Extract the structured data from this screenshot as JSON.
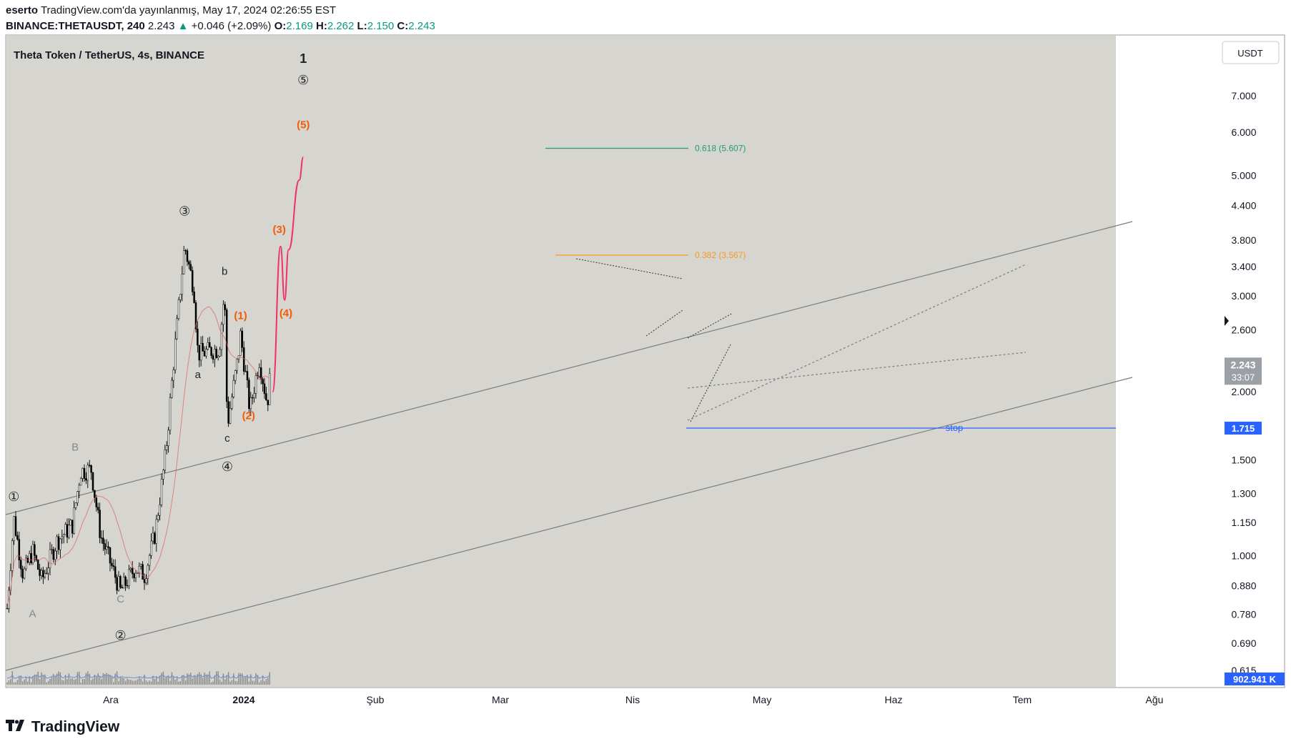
{
  "header": {
    "author": "eserto",
    "published": "TradingView.com'da yayınlanmış, May 17, 2024 02:26:55 EST",
    "symbol": "BINANCE:THETAUSDT, 240",
    "last": "2.243",
    "change": "+0.046 (+2.09%)",
    "o_label": "O:",
    "o_value": "2.169",
    "h_label": "H:",
    "h_value": "2.262",
    "l_label": "L:",
    "l_value": "2.150",
    "c_label": "C:",
    "c_value": "2.243"
  },
  "footer": {
    "brand": "TradingView"
  },
  "colors": {
    "plot_bg": "#d6d5d0",
    "candle": "#000000",
    "channel": "#7d7d7d",
    "fib_green": "#1e9e78",
    "fib_orange": "#f59a23",
    "projection": "#f0316a",
    "wave_orange": "#f25c05",
    "stop": "#2962ff",
    "price_box": "#9aa0a6"
  },
  "chart_data": {
    "type": "candlestick",
    "title": "Theta Token / TetherUS, 4s, BINANCE",
    "currency_button": "USDT",
    "y_scale": "log",
    "ylim": [
      0.615,
      8.0
    ],
    "y_ticks": [
      "7.000",
      "6.000",
      "5.000",
      "4.400",
      "3.800",
      "3.400",
      "3.000",
      "2.600",
      "2.200",
      "2.000",
      "1.500",
      "1.300",
      "1.150",
      "1.000",
      "0.880",
      "0.780",
      "0.690",
      "0.615"
    ],
    "x_ticks": [
      "Ara",
      "2024",
      "Şub",
      "Mar",
      "Nis",
      "May",
      "Haz",
      "Tem",
      "Ağu"
    ],
    "last_price": {
      "value": "2.243",
      "countdown": "33:07"
    },
    "stop_level": {
      "value": "1.715",
      "label": "stop"
    },
    "volume_label": "902.941 K",
    "fib_levels": [
      {
        "label": "0.618 (5.607)",
        "price": 5.607
      },
      {
        "label": "0.382 (3.567)",
        "price": 3.567
      }
    ],
    "price_path": [
      {
        "date": "2023-11-01",
        "close": 0.8
      },
      {
        "date": "2023-11-06",
        "close": 1.17
      },
      {
        "date": "2023-11-13",
        "close": 0.92
      },
      {
        "date": "2023-11-20",
        "close": 1.02
      },
      {
        "date": "2023-11-27",
        "close": 0.9
      },
      {
        "date": "2023-12-08",
        "close": 1.06
      },
      {
        "date": "2023-12-20",
        "close": 1.14
      },
      {
        "date": "2023-12-26",
        "close": 1.43
      },
      {
        "date": "2024-01-03",
        "close": 1.44
      },
      {
        "date": "2024-01-10",
        "close": 1.09
      },
      {
        "date": "2024-01-25",
        "close": 0.86
      },
      {
        "date": "2024-02-05",
        "close": 0.95
      },
      {
        "date": "2024-02-12",
        "close": 0.92
      },
      {
        "date": "2024-02-20",
        "close": 1.1
      },
      {
        "date": "2024-02-28",
        "close": 1.55
      },
      {
        "date": "2024-03-05",
        "close": 2.3
      },
      {
        "date": "2024-03-13",
        "close": 3.72
      },
      {
        "date": "2024-03-20",
        "close": 3.1
      },
      {
        "date": "2024-03-23",
        "close": 2.35
      },
      {
        "date": "2024-04-08",
        "close": 2.4
      },
      {
        "date": "2024-04-12",
        "close": 3.08
      },
      {
        "date": "2024-04-14",
        "close": 1.73
      },
      {
        "date": "2024-04-22",
        "close": 2.3
      },
      {
        "date": "2024-04-24",
        "close": 2.55
      },
      {
        "date": "2024-05-01",
        "close": 1.85
      },
      {
        "date": "2024-05-08",
        "close": 2.3
      },
      {
        "date": "2024-05-14",
        "close": 1.9
      },
      {
        "date": "2024-05-17",
        "close": 2.243
      }
    ],
    "projection_path": [
      {
        "date": "2024-05-18",
        "close": 2.0
      },
      {
        "date": "2024-05-24",
        "close": 3.7
      },
      {
        "date": "2024-05-27",
        "close": 2.95
      },
      {
        "date": "2024-05-30",
        "close": 3.65
      },
      {
        "date": "2024-06-07",
        "close": 4.9
      },
      {
        "date": "2024-06-10",
        "close": 5.4
      }
    ],
    "wave_labels": [
      {
        "text": "①",
        "date": "2023-11-06",
        "price": 1.26
      },
      {
        "text": "A",
        "date": "2023-11-20",
        "price": 0.77
      },
      {
        "text": "B",
        "date": "2023-12-22",
        "price": 1.56
      },
      {
        "text": "C",
        "date": "2024-01-25",
        "price": 0.82
      },
      {
        "text": "②",
        "date": "2024-01-25",
        "price": 0.7
      },
      {
        "text": "③",
        "date": "2024-03-13",
        "price": 4.22
      },
      {
        "text": "a",
        "date": "2024-03-23",
        "price": 2.12
      },
      {
        "text": "b",
        "date": "2024-04-12",
        "price": 3.28
      },
      {
        "text": "c",
        "date": "2024-04-14",
        "price": 1.62
      },
      {
        "text": "④",
        "date": "2024-04-14",
        "price": 1.43
      },
      {
        "text": "(1)",
        "date": "2024-04-24",
        "price": 2.72
      },
      {
        "text": "(2)",
        "date": "2024-04-30",
        "price": 1.78
      },
      {
        "text": "(3)",
        "date": "2024-05-23",
        "price": 3.92
      },
      {
        "text": "(4)",
        "date": "2024-05-28",
        "price": 2.75
      },
      {
        "text": "(5)",
        "date": "2024-06-10",
        "price": 6.1
      },
      {
        "text": "⑤",
        "date": "2024-06-10",
        "price": 7.35
      },
      {
        "text": "1",
        "date": "2024-06-10",
        "price": 8.05
      }
    ]
  }
}
